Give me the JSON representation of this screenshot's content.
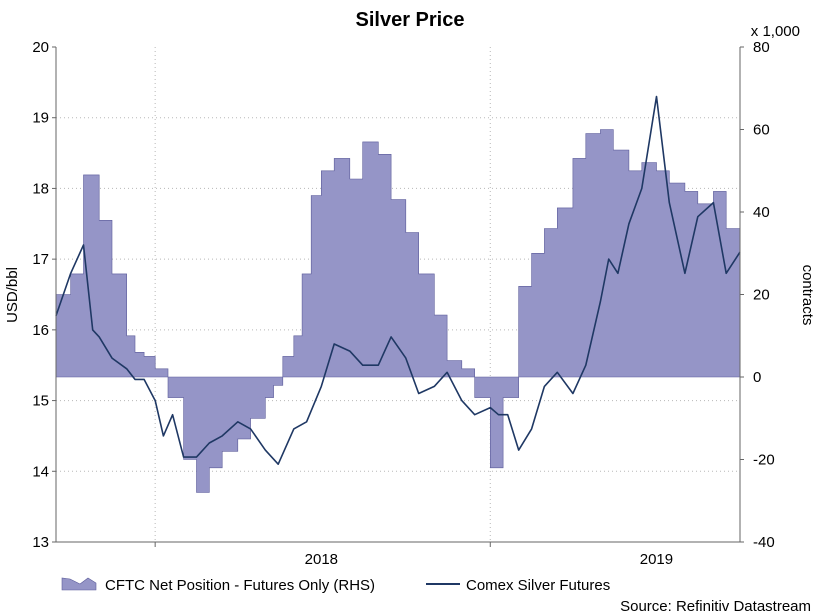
{
  "chart_data": {
    "type": "line",
    "title": "Silver Price",
    "ylabel_left": "USD/bbl",
    "ylabel_right": "contracts",
    "right_axis_multiplier": "x 1,000",
    "source": "Source: Refinitiv Datastream",
    "grid": true,
    "legend_placement": "bottom-left",
    "left_axis": {
      "range": [
        13,
        20
      ],
      "ticks": [
        "13",
        "14",
        "15",
        "16",
        "17",
        "18",
        "19",
        "20"
      ]
    },
    "right_axis": {
      "range": [
        -40,
        80
      ],
      "ticks": [
        "-40",
        "-20",
        "0",
        "20",
        "40",
        "60",
        "80"
      ]
    },
    "x_axis": {
      "range": [
        "2017-09-15",
        "2019-09-30"
      ],
      "tick_labels": [
        {
          "label": "2018",
          "date": "2018-07-01"
        },
        {
          "label": "2019",
          "date": "2019-07-01"
        }
      ],
      "year_boundaries": [
        "2018-01-01",
        "2019-01-01"
      ]
    },
    "colors": {
      "area_fill": "#9595c7",
      "area_edge": "#5c5c9a",
      "line": "#1f3864",
      "grid": "#b8b8b8"
    },
    "series": [
      {
        "name": "CFTC Net Position - Futures Only (RHS)",
        "axis": "right",
        "kind": "area",
        "x": [
          "2017-09-15",
          "2017-10-01",
          "2017-10-15",
          "2017-11-01",
          "2017-11-15",
          "2017-12-01",
          "2017-12-10",
          "2017-12-20",
          "2018-01-01",
          "2018-01-15",
          "2018-02-01",
          "2018-02-15",
          "2018-03-01",
          "2018-03-15",
          "2018-04-01",
          "2018-04-15",
          "2018-05-01",
          "2018-05-10",
          "2018-05-20",
          "2018-06-01",
          "2018-06-10",
          "2018-06-20",
          "2018-07-01",
          "2018-07-15",
          "2018-08-01",
          "2018-08-15",
          "2018-09-01",
          "2018-09-15",
          "2018-10-01",
          "2018-10-15",
          "2018-11-01",
          "2018-11-15",
          "2018-12-01",
          "2018-12-15",
          "2019-01-01",
          "2019-01-15",
          "2019-02-01",
          "2019-02-15",
          "2019-03-01",
          "2019-03-15",
          "2019-04-01",
          "2019-04-15",
          "2019-05-01",
          "2019-05-15",
          "2019-06-01",
          "2019-06-15",
          "2019-07-01",
          "2019-07-15",
          "2019-08-01",
          "2019-08-15",
          "2019-09-01",
          "2019-09-15",
          "2019-09-30"
        ],
        "values": [
          20,
          25,
          49,
          38,
          25,
          10,
          6,
          5,
          2,
          -5,
          -20,
          -28,
          -22,
          -18,
          -15,
          -10,
          -5,
          -2,
          5,
          10,
          25,
          44,
          50,
          53,
          48,
          57,
          54,
          43,
          35,
          25,
          15,
          4,
          2,
          -5,
          -22,
          -5,
          22,
          30,
          36,
          41,
          53,
          59,
          60,
          55,
          50,
          52,
          50,
          47,
          45,
          42,
          45,
          36,
          38
        ]
      },
      {
        "name": "Comex Silver Futures",
        "axis": "left",
        "kind": "line",
        "x": [
          "2017-09-15",
          "2017-10-01",
          "2017-10-15",
          "2017-10-25",
          "2017-11-01",
          "2017-11-15",
          "2017-12-01",
          "2017-12-10",
          "2017-12-20",
          "2018-01-01",
          "2018-01-10",
          "2018-01-20",
          "2018-02-01",
          "2018-02-15",
          "2018-03-01",
          "2018-03-15",
          "2018-04-01",
          "2018-04-15",
          "2018-05-01",
          "2018-05-15",
          "2018-06-01",
          "2018-06-15",
          "2018-07-01",
          "2018-07-15",
          "2018-08-01",
          "2018-08-15",
          "2018-09-01",
          "2018-09-15",
          "2018-10-01",
          "2018-10-15",
          "2018-11-01",
          "2018-11-15",
          "2018-12-01",
          "2018-12-15",
          "2019-01-01",
          "2019-01-10",
          "2019-01-20",
          "2019-02-01",
          "2019-02-15",
          "2019-03-01",
          "2019-03-15",
          "2019-04-01",
          "2019-04-15",
          "2019-05-01",
          "2019-05-10",
          "2019-05-20",
          "2019-06-01",
          "2019-06-15",
          "2019-07-01",
          "2019-07-15",
          "2019-08-01",
          "2019-08-15",
          "2019-09-01",
          "2019-09-15",
          "2019-09-30"
        ],
        "values": [
          16.2,
          16.8,
          17.2,
          16.0,
          15.9,
          15.6,
          15.45,
          15.3,
          15.3,
          15.0,
          14.5,
          14.8,
          14.2,
          14.2,
          14.4,
          14.5,
          14.7,
          14.6,
          14.3,
          14.1,
          14.6,
          14.7,
          15.2,
          15.8,
          15.7,
          15.5,
          15.5,
          15.9,
          15.6,
          15.1,
          15.2,
          15.4,
          15.0,
          14.8,
          14.9,
          14.8,
          14.8,
          14.3,
          14.6,
          15.2,
          15.4,
          15.1,
          15.5,
          16.4,
          17.0,
          16.8,
          17.5,
          18.0,
          19.3,
          17.8,
          16.8,
          17.6,
          17.8,
          16.8,
          17.1
        ]
      }
    ]
  }
}
